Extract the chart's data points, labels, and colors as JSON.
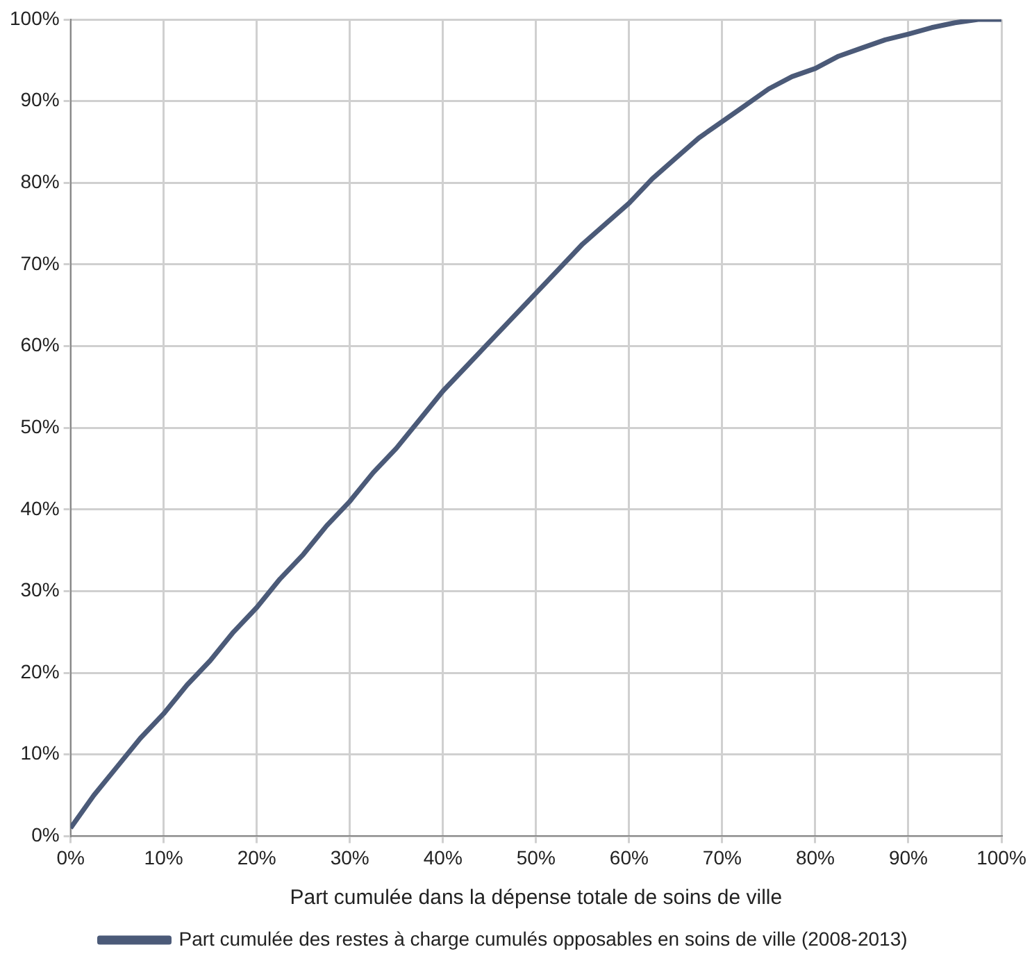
{
  "chart_data": {
    "type": "line",
    "xlabel": "Part cumulée dans la dépense totale de soins de ville",
    "x": [
      0,
      2.5,
      5,
      7.5,
      10,
      12.5,
      15,
      17.5,
      20,
      22.5,
      25,
      27.5,
      30,
      32.5,
      35,
      37.5,
      40,
      42.5,
      45,
      47.5,
      50,
      52.5,
      55,
      57.5,
      60,
      62.5,
      65,
      67.5,
      70,
      72.5,
      75,
      77.5,
      80,
      82.5,
      85,
      87.5,
      90,
      92.5,
      95,
      97.5,
      100
    ],
    "series": [
      {
        "name": "Part cumulée des restes à charge cumulés opposables en soins de ville (2008-2013)",
        "color": "#4b5a78",
        "values": [
          1,
          5,
          8.5,
          12,
          15,
          18.5,
          21.5,
          25,
          28,
          31.5,
          34.5,
          38,
          41,
          44.5,
          47.5,
          51,
          54.5,
          57.5,
          60.5,
          63.5,
          66.5,
          69.5,
          72.5,
          75,
          77.5,
          80.5,
          83,
          85.5,
          87.5,
          89.5,
          91.5,
          93,
          94,
          95.5,
          96.5,
          97.5,
          98.2,
          99,
          99.6,
          100,
          100
        ]
      }
    ],
    "xlim": [
      0,
      100
    ],
    "ylim": [
      0,
      100
    ],
    "xticks": [
      {
        "value": 0,
        "label": "0%"
      },
      {
        "value": 10,
        "label": "10%"
      },
      {
        "value": 20,
        "label": "20%"
      },
      {
        "value": 30,
        "label": "30%"
      },
      {
        "value": 40,
        "label": "40%"
      },
      {
        "value": 50,
        "label": "50%"
      },
      {
        "value": 60,
        "label": "60%"
      },
      {
        "value": 70,
        "label": "70%"
      },
      {
        "value": 80,
        "label": "80%"
      },
      {
        "value": 90,
        "label": "90%"
      },
      {
        "value": 100,
        "label": "100%"
      }
    ],
    "yticks": [
      {
        "value": 0,
        "label": "0%"
      },
      {
        "value": 10,
        "label": "10%"
      },
      {
        "value": 20,
        "label": "20%"
      },
      {
        "value": 30,
        "label": "30%"
      },
      {
        "value": 40,
        "label": "40%"
      },
      {
        "value": 50,
        "label": "50%"
      },
      {
        "value": 60,
        "label": "60%"
      },
      {
        "value": 70,
        "label": "70%"
      },
      {
        "value": 80,
        "label": "80%"
      },
      {
        "value": 90,
        "label": "90%"
      },
      {
        "value": 100,
        "label": "100%"
      }
    ],
    "grid": true,
    "legend": "bottom",
    "marker": "none",
    "line_style": "solid"
  }
}
